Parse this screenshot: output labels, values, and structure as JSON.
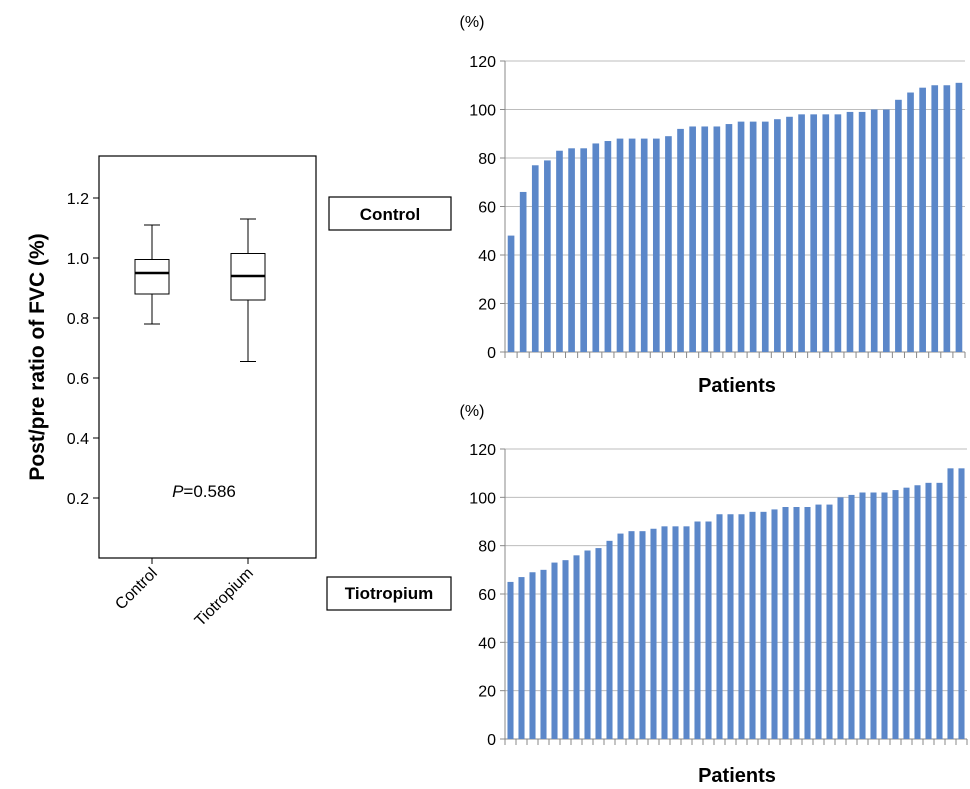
{
  "chart_data": [
    {
      "type": "boxplot",
      "ylabel": "Post/pre ratio of FVC (%)",
      "yticks": [
        "0.2",
        "0.4",
        "0.6",
        "0.8",
        "1.0",
        "1.2"
      ],
      "ylim": [
        0.0,
        1.35
      ],
      "categories": [
        "Control",
        "Tiotropium"
      ],
      "boxes": [
        {
          "name": "Control",
          "min": 0.78,
          "q1": 0.88,
          "median": 0.95,
          "q3": 0.995,
          "max": 1.11
        },
        {
          "name": "Tiotropium",
          "min": 0.655,
          "q1": 0.86,
          "median": 0.94,
          "q3": 1.015,
          "max": 1.13
        }
      ],
      "annotation": {
        "italic": "P",
        "rest": "=0.586"
      }
    },
    {
      "type": "bar",
      "group_label": "Control",
      "unit_label": "(%)",
      "xlabel": "Patients",
      "ylim": [
        0,
        120
      ],
      "yticks": [
        "0",
        "20",
        "40",
        "60",
        "80",
        "100",
        "120"
      ],
      "color": "#5b87c9",
      "values": [
        48,
        66,
        77,
        79,
        83,
        84,
        84,
        86,
        87,
        88,
        88,
        88,
        88,
        89,
        92,
        93,
        93,
        93,
        94,
        95,
        95,
        95,
        96,
        97,
        98,
        98,
        98,
        98,
        99,
        99,
        100,
        100,
        104,
        107,
        109,
        110,
        110,
        111
      ]
    },
    {
      "type": "bar",
      "group_label": "Tiotropium",
      "unit_label": "(%)",
      "xlabel": "Patients",
      "ylim": [
        0,
        120
      ],
      "yticks": [
        "0",
        "20",
        "40",
        "60",
        "80",
        "100",
        "120"
      ],
      "color": "#5b87c9",
      "values": [
        65,
        67,
        69,
        70,
        73,
        74,
        76,
        78,
        79,
        82,
        85,
        86,
        86,
        87,
        88,
        88,
        88,
        90,
        90,
        93,
        93,
        93,
        94,
        94,
        95,
        96,
        96,
        96,
        97,
        97,
        100,
        101,
        102,
        102,
        102,
        103,
        104,
        105,
        106,
        106,
        112,
        112
      ]
    }
  ]
}
